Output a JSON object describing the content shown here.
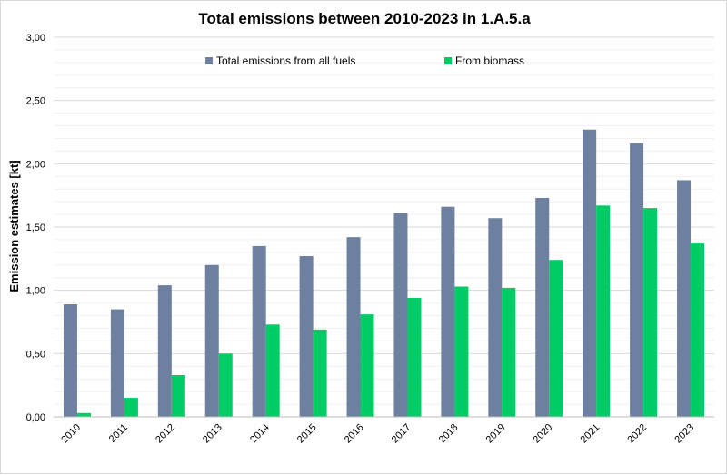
{
  "chart_data": {
    "type": "bar",
    "title": "Total emissions between 2010-2023 in 1.A.5.a",
    "xlabel": "",
    "ylabel": "Emission estimates [kt]",
    "ylim": [
      0,
      3
    ],
    "y_ticks": [
      "0,00",
      "0,50",
      "1,00",
      "1,50",
      "2,00",
      "2,50",
      "3,00"
    ],
    "grid": true,
    "legend_position": "top",
    "categories": [
      "2010",
      "2011",
      "2012",
      "2013",
      "2014",
      "2015",
      "2016",
      "2017",
      "2018",
      "2019",
      "2020",
      "2021",
      "2022",
      "2023"
    ],
    "series": [
      {
        "name": "Total emissions from all fuels",
        "color": "#6d809f",
        "values": [
          0.89,
          0.85,
          1.04,
          1.2,
          1.35,
          1.27,
          1.42,
          1.61,
          1.66,
          1.57,
          1.73,
          2.27,
          2.16,
          1.87
        ]
      },
      {
        "name": "From biomass",
        "color": "#00cc66",
        "values": [
          0.03,
          0.15,
          0.33,
          0.5,
          0.73,
          0.69,
          0.81,
          0.94,
          1.03,
          1.02,
          1.24,
          1.67,
          1.65,
          1.37
        ]
      }
    ]
  }
}
